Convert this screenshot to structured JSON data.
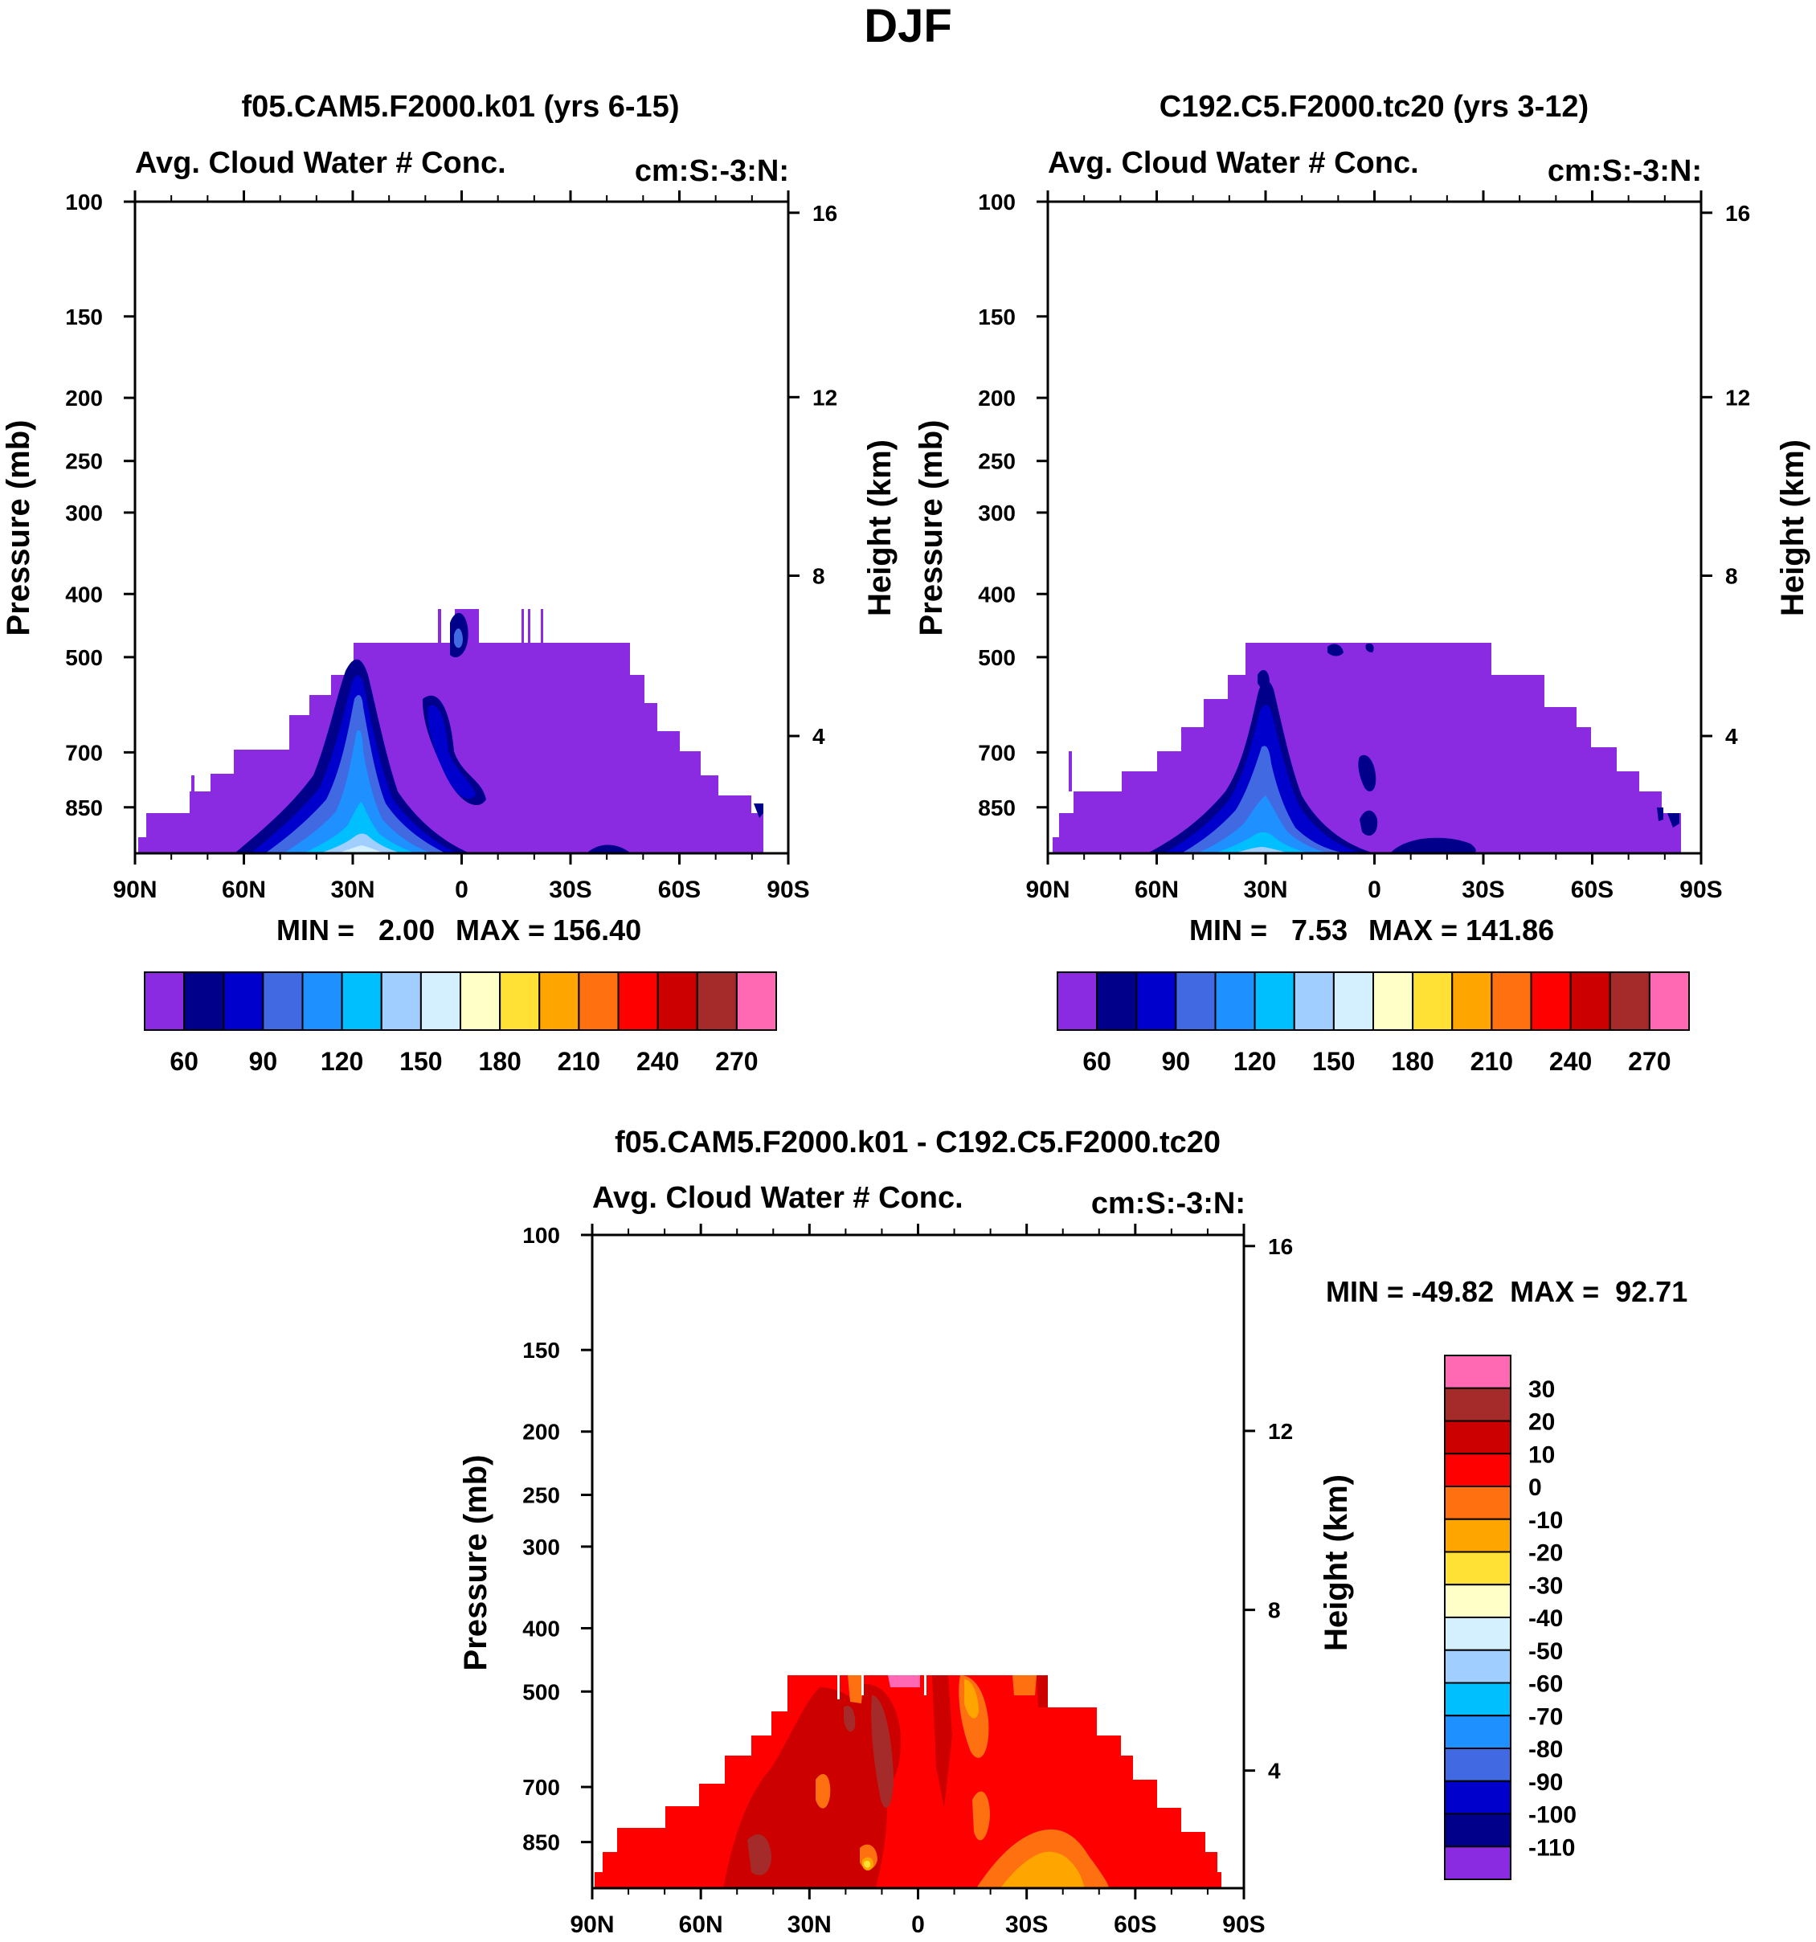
{
  "figure": {
    "title": "DJF"
  },
  "chart_data": [
    {
      "id": "p1",
      "type": "contour",
      "title": "f05.CAM5.F2000.k01 (yrs 6-15)",
      "left_label": "Avg. Cloud Water # Conc.",
      "right_label": "cm:S:-3:N:",
      "ylabel": "Pressure (mb)",
      "y2label": "Height (km)",
      "x_ticks": [
        "90N",
        "60N",
        "30N",
        "0",
        "30S",
        "60S",
        "90S"
      ],
      "y_ticks": [
        "100",
        "150",
        "200",
        "250",
        "300",
        "400",
        "500",
        "700",
        "850"
      ],
      "y2_ticks": [
        "16",
        "12",
        "8",
        "4"
      ],
      "min_label": "MIN =   2.00",
      "max_label": "MAX = 156.40",
      "colorbar": {
        "labels": [
          "60",
          "90",
          "120",
          "150",
          "180",
          "210",
          "240",
          "270"
        ],
        "colors": [
          "#8a2be2",
          "#00008b",
          "#0000cd",
          "#4169e1",
          "#1e90ff",
          "#00bfff",
          "#a0cfff",
          "#d4f0ff",
          "#ffffc8",
          "#ffe135",
          "#ffa500",
          "#ff7010",
          "#ff0000",
          "#cd0000",
          "#a52a2a",
          "#ff69b4"
        ]
      }
    },
    {
      "id": "p2",
      "type": "contour",
      "title": "C192.C5.F2000.tc20 (yrs 3-12)",
      "left_label": "Avg. Cloud Water # Conc.",
      "right_label": "cm:S:-3:N:",
      "ylabel": "Pressure (mb)",
      "y2label": "Height (km)",
      "x_ticks": [
        "90N",
        "60N",
        "30N",
        "0",
        "30S",
        "60S",
        "90S"
      ],
      "y_ticks": [
        "100",
        "150",
        "200",
        "250",
        "300",
        "400",
        "500",
        "700",
        "850"
      ],
      "y2_ticks": [
        "16",
        "12",
        "8",
        "4"
      ],
      "min_label": "MIN =   7.53",
      "max_label": "MAX = 141.86",
      "colorbar": {
        "labels": [
          "60",
          "90",
          "120",
          "150",
          "180",
          "210",
          "240",
          "270"
        ],
        "colors": [
          "#8a2be2",
          "#00008b",
          "#0000cd",
          "#4169e1",
          "#1e90ff",
          "#00bfff",
          "#a0cfff",
          "#d4f0ff",
          "#ffffc8",
          "#ffe135",
          "#ffa500",
          "#ff7010",
          "#ff0000",
          "#cd0000",
          "#a52a2a",
          "#ff69b4"
        ]
      }
    },
    {
      "id": "p3",
      "type": "contour",
      "title": "f05.CAM5.F2000.k01 - C192.C5.F2000.tc20",
      "left_label": "Avg. Cloud Water # Conc.",
      "right_label": "cm:S:-3:N:",
      "ylabel": "Pressure (mb)",
      "y2label": "Height (km)",
      "x_ticks": [
        "90N",
        "60N",
        "30N",
        "0",
        "30S",
        "60S",
        "90S"
      ],
      "y_ticks": [
        "100",
        "150",
        "200",
        "250",
        "300",
        "400",
        "500",
        "700",
        "850"
      ],
      "y2_ticks": [
        "16",
        "12",
        "8",
        "4"
      ],
      "minmax_label": "MIN = -49.82  MAX =  92.71",
      "colorbar": {
        "labels": [
          "30",
          "20",
          "10",
          "0",
          "-10",
          "-20",
          "-30",
          "-40",
          "-50",
          "-60",
          "-70",
          "-80",
          "-90",
          "-100",
          "-110"
        ],
        "colors": [
          "#ff69b4",
          "#a52a2a",
          "#cd0000",
          "#ff0000",
          "#ff7010",
          "#ffa500",
          "#ffe135",
          "#ffffc8",
          "#d4f0ff",
          "#a0cfff",
          "#00bfff",
          "#1e90ff",
          "#4169e1",
          "#0000cd",
          "#00008b",
          "#8a2be2"
        ]
      }
    }
  ]
}
